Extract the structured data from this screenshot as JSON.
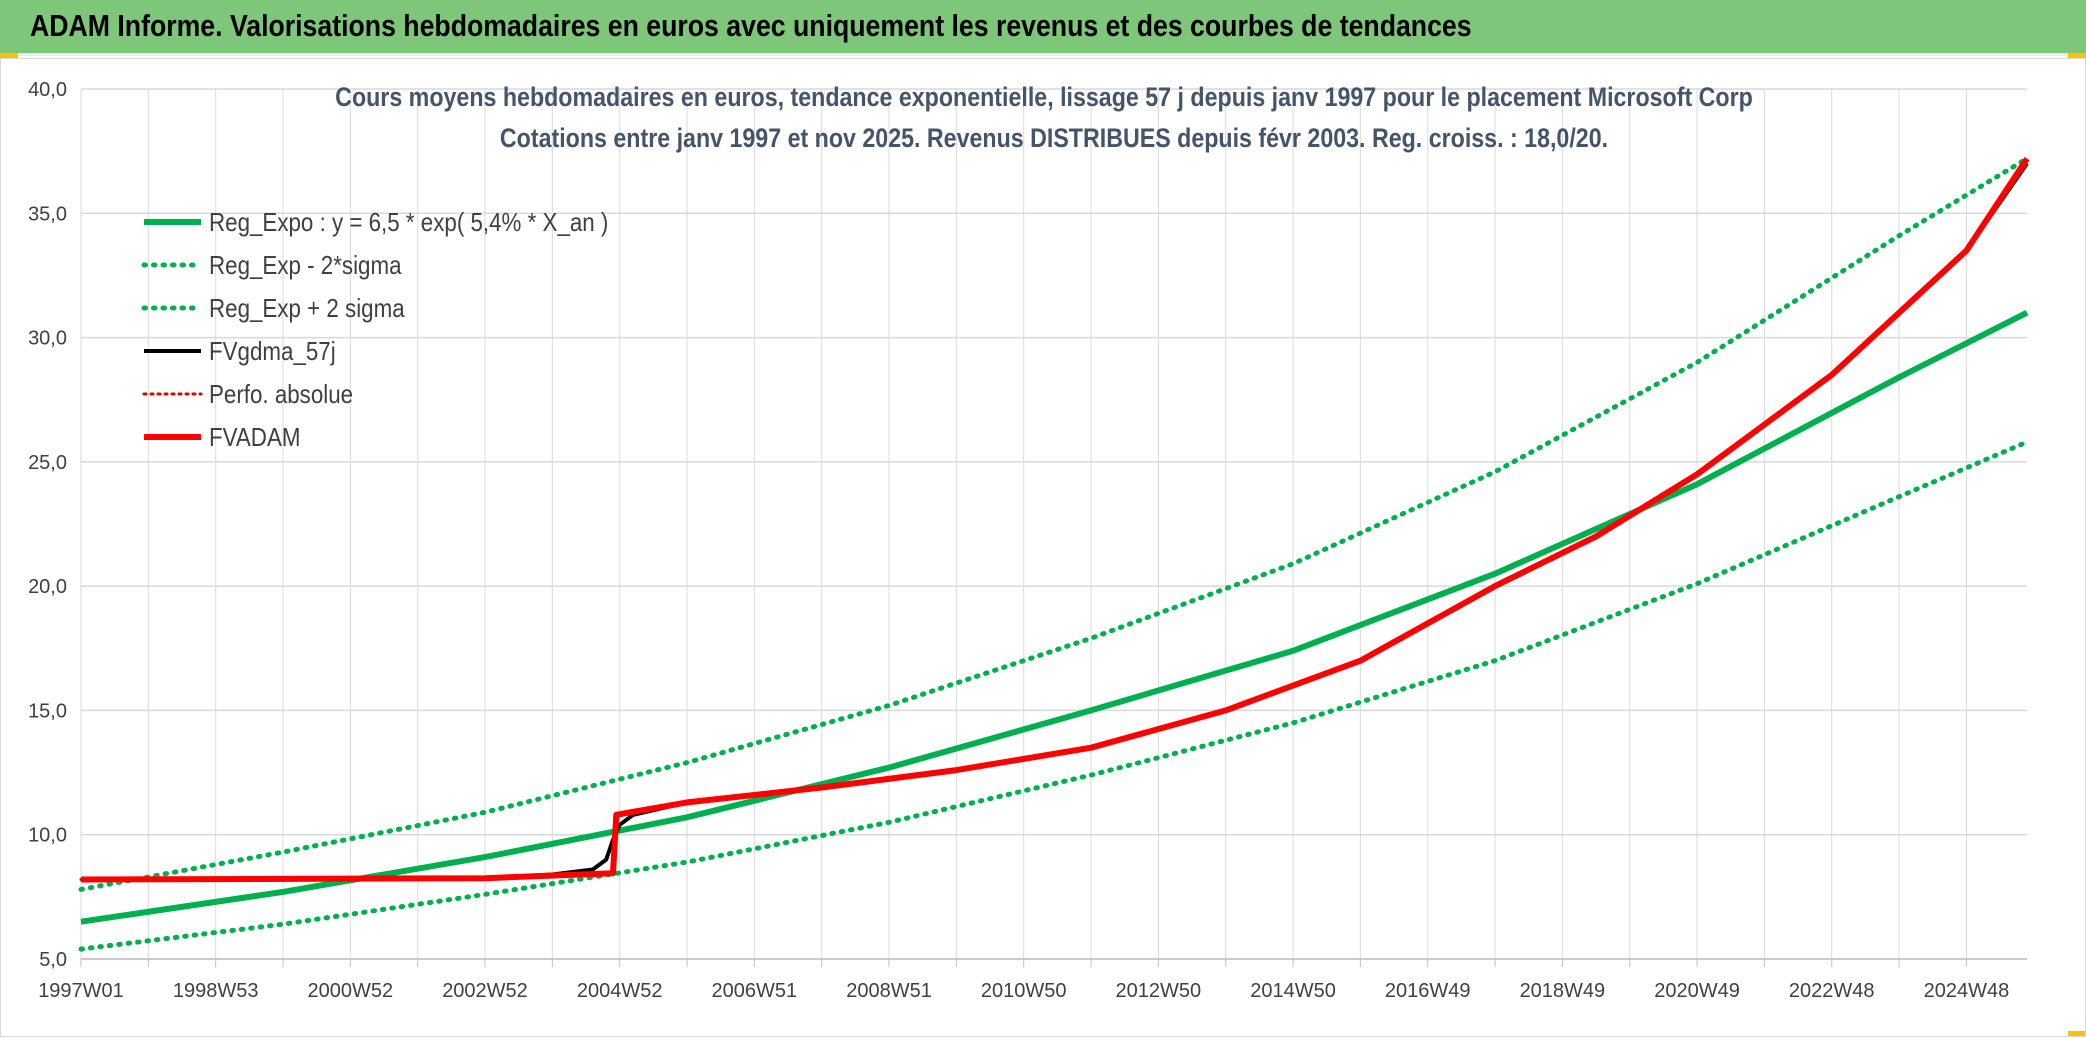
{
  "banner": {
    "title": "ADAM Informe. Valorisations hebdomadaires en euros avec uniquement les revenus et des courbes de tendances"
  },
  "colors": {
    "banner_bg": "#7dc67a",
    "reg_expo": "#00b050",
    "fvgdma": "#000000",
    "perfo": "#e00000",
    "fvadam": "#ff0000",
    "grid": "#d9d9d9"
  },
  "chart_data": {
    "type": "line",
    "title_line1": "Cours moyens hebdomadaires en euros, tendance exponentielle, lissage 57 j depuis janv 1997 pour le placement Microsoft Corp",
    "title_line2": "Cotations entre janv 1997 et nov 2025. Revenus DISTRIBUES depuis févr 2003. Reg. croiss. : 18,0/20.",
    "ylim": [
      5,
      40
    ],
    "y_ticks": [
      "5,0",
      "10,0",
      "15,0",
      "20,0",
      "25,0",
      "30,0",
      "35,0",
      "40,0"
    ],
    "xlim": [
      1997.0,
      2025.9
    ],
    "x_ticks": [
      "1997W01",
      "1998W53",
      "2000W52",
      "2002W52",
      "2004W52",
      "2006W51",
      "2008W51",
      "2010W50",
      "2012W50",
      "2014W50",
      "2016W49",
      "2018W49",
      "2020W49",
      "2022W48",
      "2024W48"
    ],
    "legend_position": "top-left",
    "grid": true,
    "series": [
      {
        "name": "Reg_Expo : y = 6,5 * exp( 5,4% *  X_an )",
        "style": "solid",
        "x": [
          1997.0,
          2000.0,
          2003.0,
          2006.0,
          2009.0,
          2012.0,
          2015.0,
          2018.0,
          2021.0,
          2024.0,
          2025.9
        ],
        "values": [
          6.5,
          7.7,
          9.1,
          10.7,
          12.7,
          15.0,
          17.4,
          20.5,
          24.1,
          28.4,
          31.0
        ]
      },
      {
        "name": "Reg_Exp - 2*sigma",
        "style": "dotted",
        "x": [
          1997.0,
          2000.0,
          2003.0,
          2006.0,
          2009.0,
          2012.0,
          2015.0,
          2018.0,
          2021.0,
          2024.0,
          2025.9
        ],
        "values": [
          5.4,
          6.4,
          7.6,
          8.9,
          10.5,
          12.4,
          14.5,
          17.0,
          20.1,
          23.6,
          25.8
        ]
      },
      {
        "name": "Reg_Exp + 2 sigma",
        "style": "dotted",
        "x": [
          1997.0,
          2000.0,
          2003.0,
          2006.0,
          2009.0,
          2012.0,
          2015.0,
          2018.0,
          2021.0,
          2024.0,
          2025.9
        ],
        "values": [
          7.8,
          9.3,
          10.9,
          12.9,
          15.2,
          17.9,
          20.9,
          24.6,
          29.0,
          34.1,
          37.2
        ]
      },
      {
        "name": "FVgdma_57j",
        "style": "solid",
        "x": [
          1997.0,
          2000.0,
          2003.0,
          2004.0,
          2004.6,
          2004.8,
          2004.9,
          2005.0,
          2005.2,
          2006.0,
          2008.0,
          2010.0,
          2012.0,
          2014.0,
          2016.0,
          2018.0,
          2019.5,
          2021.0,
          2023.0,
          2025.0,
          2025.9
        ],
        "values": [
          8.2,
          8.2,
          8.25,
          8.4,
          8.6,
          9.0,
          9.8,
          10.4,
          10.8,
          11.3,
          11.9,
          12.6,
          13.5,
          15.0,
          17.0,
          20.0,
          22.0,
          24.5,
          28.5,
          33.5,
          37.0
        ]
      },
      {
        "name": "Perfo. absolue",
        "style": "dotted",
        "x": [
          1997.0,
          2003.0,
          2004.9,
          2004.95,
          2006.0,
          2008.0,
          2010.0,
          2012.0,
          2014.0,
          2016.0,
          2018.0,
          2019.5,
          2021.0,
          2023.0,
          2025.0,
          2025.9
        ],
        "values": [
          8.2,
          8.25,
          8.45,
          10.8,
          11.3,
          11.9,
          12.6,
          13.5,
          15.0,
          17.0,
          20.0,
          22.0,
          24.5,
          28.5,
          33.5,
          37.0
        ]
      },
      {
        "name": "FVADAM",
        "style": "solid",
        "x": [
          1997.0,
          2003.0,
          2004.9,
          2004.95,
          2006.0,
          2008.0,
          2010.0,
          2012.0,
          2014.0,
          2016.0,
          2018.0,
          2019.5,
          2021.0,
          2023.0,
          2025.0,
          2025.9
        ],
        "values": [
          8.2,
          8.25,
          8.45,
          10.8,
          11.3,
          11.9,
          12.6,
          13.5,
          15.0,
          17.0,
          20.0,
          22.0,
          24.5,
          28.5,
          33.5,
          37.2
        ]
      }
    ]
  }
}
